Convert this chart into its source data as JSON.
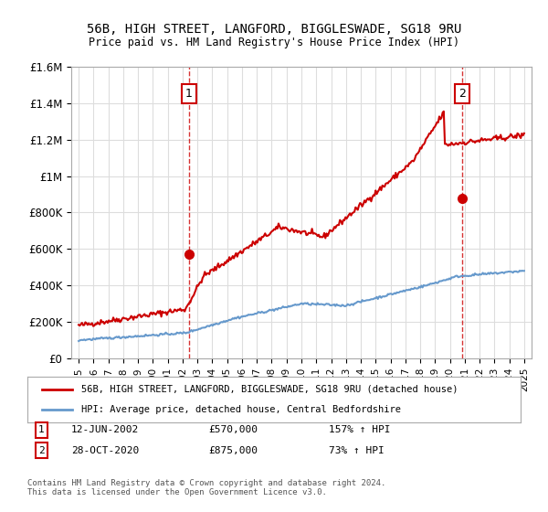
{
  "title1": "56B, HIGH STREET, LANGFORD, BIGGLESWADE, SG18 9RU",
  "title2": "Price paid vs. HM Land Registry's House Price Index (HPI)",
  "ylim": [
    0,
    1600000
  ],
  "yticks": [
    0,
    200000,
    400000,
    600000,
    800000,
    1000000,
    1200000,
    1400000,
    1600000
  ],
  "ytick_labels": [
    "£0",
    "£200K",
    "£400K",
    "£600K",
    "£800K",
    "£1M",
    "£1.2M",
    "£1.4M",
    "£1.6M"
  ],
  "xlim_start": 1994.5,
  "xlim_end": 2025.5,
  "red_color": "#cc0000",
  "blue_color": "#6699cc",
  "marker1_x": 2002.44,
  "marker1_y": 570000,
  "marker2_x": 2020.83,
  "marker2_y": 875000,
  "annotation1": "1",
  "annotation2": "2",
  "legend1": "56B, HIGH STREET, LANGFORD, BIGGLESWADE, SG18 9RU (detached house)",
  "legend2": "HPI: Average price, detached house, Central Bedfordshire",
  "table_row1_num": "1",
  "table_row1_date": "12-JUN-2002",
  "table_row1_price": "£570,000",
  "table_row1_hpi": "157% ↑ HPI",
  "table_row2_num": "2",
  "table_row2_date": "28-OCT-2020",
  "table_row2_price": "£875,000",
  "table_row2_hpi": "73% ↑ HPI",
  "footer": "Contains HM Land Registry data © Crown copyright and database right 2024.\nThis data is licensed under the Open Government Licence v3.0.",
  "background_color": "#ffffff",
  "grid_color": "#dddddd"
}
